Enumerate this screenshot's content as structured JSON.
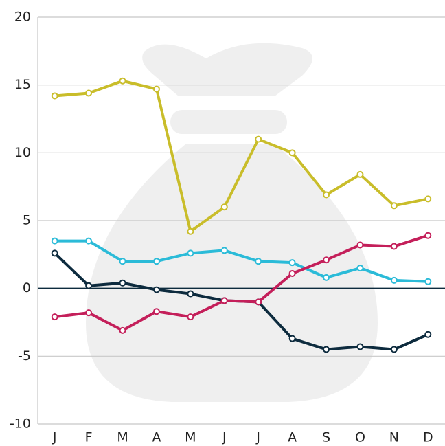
{
  "chart_data": {
    "type": "line",
    "categories": [
      "J",
      "F",
      "M",
      "A",
      "M",
      "J",
      "J",
      "A",
      "S",
      "O",
      "N",
      "D"
    ],
    "series": [
      {
        "color": "#c9bd2a",
        "values": [
          14.2,
          14.4,
          15.3,
          14.7,
          4.2,
          6.0,
          11.0,
          10.0,
          6.9,
          8.4,
          6.1,
          6.6
        ]
      },
      {
        "color": "#2bbbd8",
        "values": [
          3.5,
          3.5,
          2.0,
          2.0,
          2.6,
          2.8,
          2.0,
          1.9,
          0.8,
          1.5,
          0.6,
          0.5
        ]
      },
      {
        "color": "#0d2b3e",
        "values": [
          2.6,
          0.2,
          0.4,
          -0.1,
          -0.4,
          -0.9,
          -1.0,
          -3.7,
          -4.5,
          -4.3,
          -4.5,
          -3.4
        ]
      },
      {
        "color": "#c41f5a",
        "values": [
          -2.1,
          -1.8,
          -3.1,
          -1.7,
          -2.1,
          -0.9,
          -1.0,
          1.1,
          2.1,
          3.2,
          3.1,
          3.9
        ]
      }
    ],
    "ylim": [
      -10,
      20
    ],
    "yticks": [
      -10,
      -5,
      0,
      5,
      10,
      15,
      20
    ],
    "grid": true
  }
}
